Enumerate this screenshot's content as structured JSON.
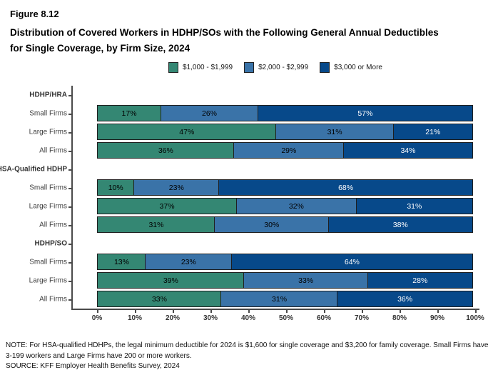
{
  "header": {
    "figure_label": "Figure 8.12",
    "title_line1": "Distribution of Covered Workers in HDHP/SOs with the Following General Annual Deductibles",
    "title_line2": "for Single Coverage, by Firm Size, 2024"
  },
  "legend": {
    "items": [
      {
        "label": "$1,000 - $1,999",
        "color": "#348773"
      },
      {
        "label": "$2,000 - $2,999",
        "color": "#3A73A8"
      },
      {
        "label": "$3,000 or More",
        "color": "#07498A"
      }
    ]
  },
  "chart_data": {
    "type": "bar",
    "stacked": true,
    "orientation": "horizontal",
    "title": "Distribution of Covered Workers in HDHP/SOs with the Following General Annual Deductibles for Single Coverage, by Firm Size, 2024",
    "series_names": [
      "$1,000 - $1,999",
      "$2,000 - $2,999",
      "$3,000 or More"
    ],
    "series_colors": [
      "#348773",
      "#3A73A8",
      "#07498A"
    ],
    "series_label_text_colors": [
      "#000000",
      "#000000",
      "#FFFFFF"
    ],
    "value_suffix": "%",
    "xlim": [
      0,
      100
    ],
    "x_tick_labels": [
      "0%",
      "10%",
      "20%",
      "30%",
      "40%",
      "50%",
      "60%",
      "70%",
      "80%",
      "90%",
      "100%"
    ],
    "legend_position": "top-center",
    "grid": false,
    "groups": [
      {
        "label": "HDHP/HRA",
        "rows": [
          {
            "label": "Small Firms",
            "values": [
              17,
              26,
              57
            ]
          },
          {
            "label": "Large Firms",
            "values": [
              47,
              31,
              21
            ]
          },
          {
            "label": "All Firms",
            "values": [
              36,
              29,
              34
            ]
          }
        ]
      },
      {
        "label": "HSA-Qualified HDHP",
        "rows": [
          {
            "label": "Small Firms",
            "values": [
              10,
              23,
              68
            ]
          },
          {
            "label": "Large Firms",
            "values": [
              37,
              32,
              31
            ]
          },
          {
            "label": "All Firms",
            "values": [
              31,
              30,
              38
            ]
          }
        ]
      },
      {
        "label": "HDHP/SO",
        "rows": [
          {
            "label": "Small Firms",
            "values": [
              13,
              23,
              64
            ]
          },
          {
            "label": "Large Firms",
            "values": [
              39,
              33,
              28
            ]
          },
          {
            "label": "All Firms",
            "values": [
              33,
              31,
              36
            ]
          }
        ]
      }
    ]
  },
  "footer": {
    "note_line1": "NOTE: For HSA-qualified HDHPs, the legal minimum deductible for 2024 is $1,600 for single coverage and $3,200 for family coverage. Small Firms have",
    "note_line2": "3-199 workers and Large Firms have 200 or more workers.",
    "source": "SOURCE: KFF Employer Health Benefits Survey, 2024"
  }
}
